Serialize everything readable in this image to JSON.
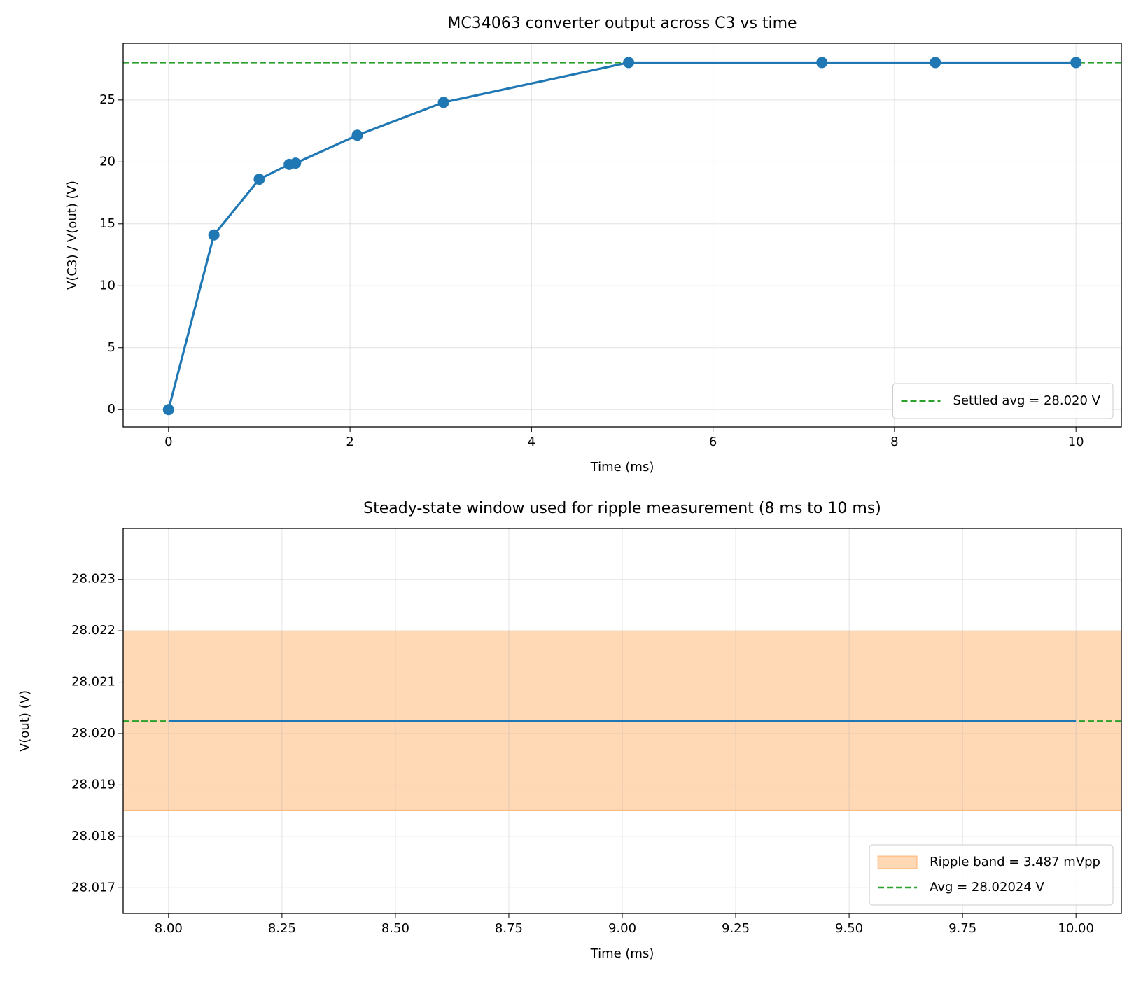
{
  "chart_data": [
    {
      "type": "line",
      "title": "MC34063 converter output across C3 vs time",
      "x_label": "Time (ms)",
      "y_label": "V(C3) / V(out) (V)",
      "x": [
        0,
        0.5,
        1.0,
        1.33,
        1.4,
        2.08,
        3.03,
        5.07,
        7.2,
        8.45,
        10.0
      ],
      "series": [
        {
          "color": "#1f77b4",
          "marker": true,
          "values": [
            0,
            14.1,
            18.6,
            19.8,
            19.9,
            22.15,
            24.8,
            28.02,
            28.02,
            28.02,
            28.02
          ]
        }
      ],
      "hlines": [
        {
          "value": 28.02,
          "label": "Settled avg = 28.020 V",
          "color": "#2ca02c",
          "style": "dashed"
        }
      ],
      "xlim": [
        -0.5,
        10.5
      ],
      "ylim": [
        -1.4,
        29.57
      ],
      "xticks": [
        0,
        2,
        4,
        6,
        8,
        10
      ],
      "yticks": [
        0,
        5,
        10,
        15,
        20,
        25
      ],
      "grid": true,
      "legend": "lower right"
    },
    {
      "type": "line",
      "title": "Steady-state window used for ripple measurement (8 ms to 10 ms)",
      "x_label": "Time (ms)",
      "y_label": "V(out) (V)",
      "x": [
        8,
        10
      ],
      "series": [
        {
          "color": "#1f77b4",
          "marker": false,
          "values": [
            28.02024,
            28.02024
          ]
        }
      ],
      "bands": [
        {
          "from": 28.01851,
          "to": 28.021997,
          "label": "Ripple band = 3.487 mVpp",
          "color": "#ff7f0e",
          "opacity": 0.3
        }
      ],
      "hlines": [
        {
          "value": 28.02024,
          "label": "Avg = 28.02024 V",
          "color": "#2ca02c",
          "style": "dashed"
        }
      ],
      "xlim": [
        7.9,
        10.1
      ],
      "ylim": [
        28.0165,
        28.02399
      ],
      "xticks": [
        {
          "value": 8,
          "label": "8.00"
        },
        {
          "value": 8.25,
          "label": "8.25"
        },
        {
          "value": 8.5,
          "label": "8.50"
        },
        {
          "value": 8.75,
          "label": "8.75"
        },
        {
          "value": 9,
          "label": "9.00"
        },
        {
          "value": 9.25,
          "label": "9.25"
        },
        {
          "value": 9.5,
          "label": "9.50"
        },
        {
          "value": 9.75,
          "label": "9.75"
        },
        {
          "value": 10,
          "label": "10.00"
        }
      ],
      "yticks": [
        28.017,
        28.018,
        28.019,
        {
          "value": 28.02,
          "label": "28.020"
        },
        28.021,
        28.022,
        28.023
      ],
      "grid": true,
      "legend": "lower right"
    }
  ]
}
